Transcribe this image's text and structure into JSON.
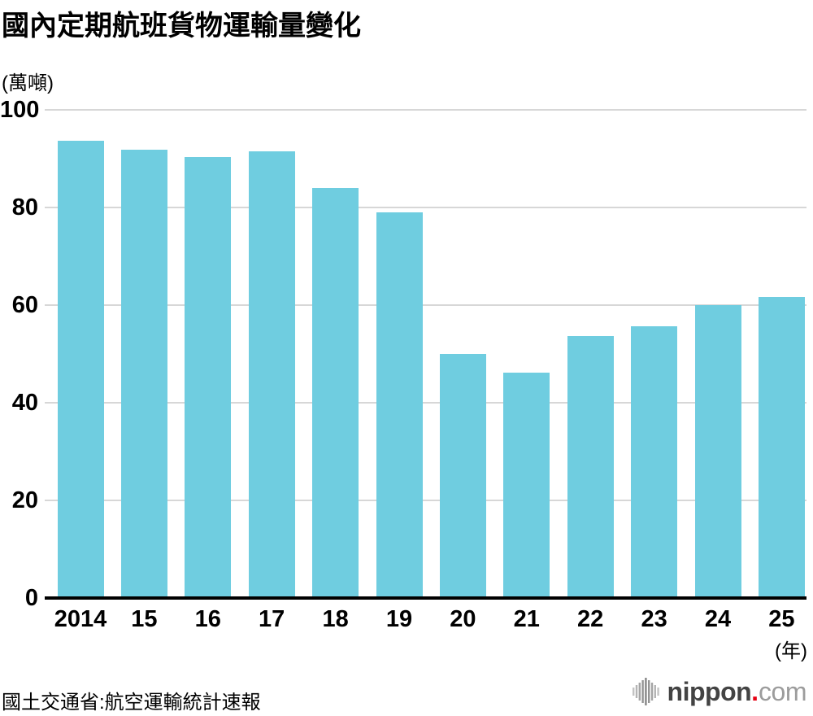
{
  "title": "國內定期航班貨物運輸量變化",
  "y_unit": "(萬噸)",
  "x_unit": "(年)",
  "source": "國土交通省:航空運輸統計速報",
  "logo": {
    "name": "nippon",
    "dot": ".",
    "tld": "com"
  },
  "colors": {
    "bar": "#6fcde0",
    "gridline": "#d7d7d7",
    "axis": "#000000",
    "text": "#000000",
    "logo_dark": "#434343",
    "logo_light": "#9c9c9c",
    "logo_dot": "#e60012",
    "logo_icon": "#a8a8a8"
  },
  "chart_data": {
    "type": "bar",
    "title": "國內定期航班貨物運輸量變化",
    "xlabel": "(年)",
    "ylabel": "(萬噸)",
    "categories": [
      "2014",
      "15",
      "16",
      "17",
      "18",
      "19",
      "20",
      "21",
      "22",
      "23",
      "24",
      "25"
    ],
    "values": [
      93.6,
      91.8,
      90.3,
      91.5,
      84.0,
      79.0,
      50.0,
      46.1,
      53.7,
      55.6,
      60.0,
      61.7
    ],
    "ylim": [
      0,
      100
    ],
    "yticks": [
      0,
      20,
      40,
      60,
      80,
      100
    ],
    "grid": true,
    "legend": "none",
    "bar_color": "#6fcde0"
  }
}
